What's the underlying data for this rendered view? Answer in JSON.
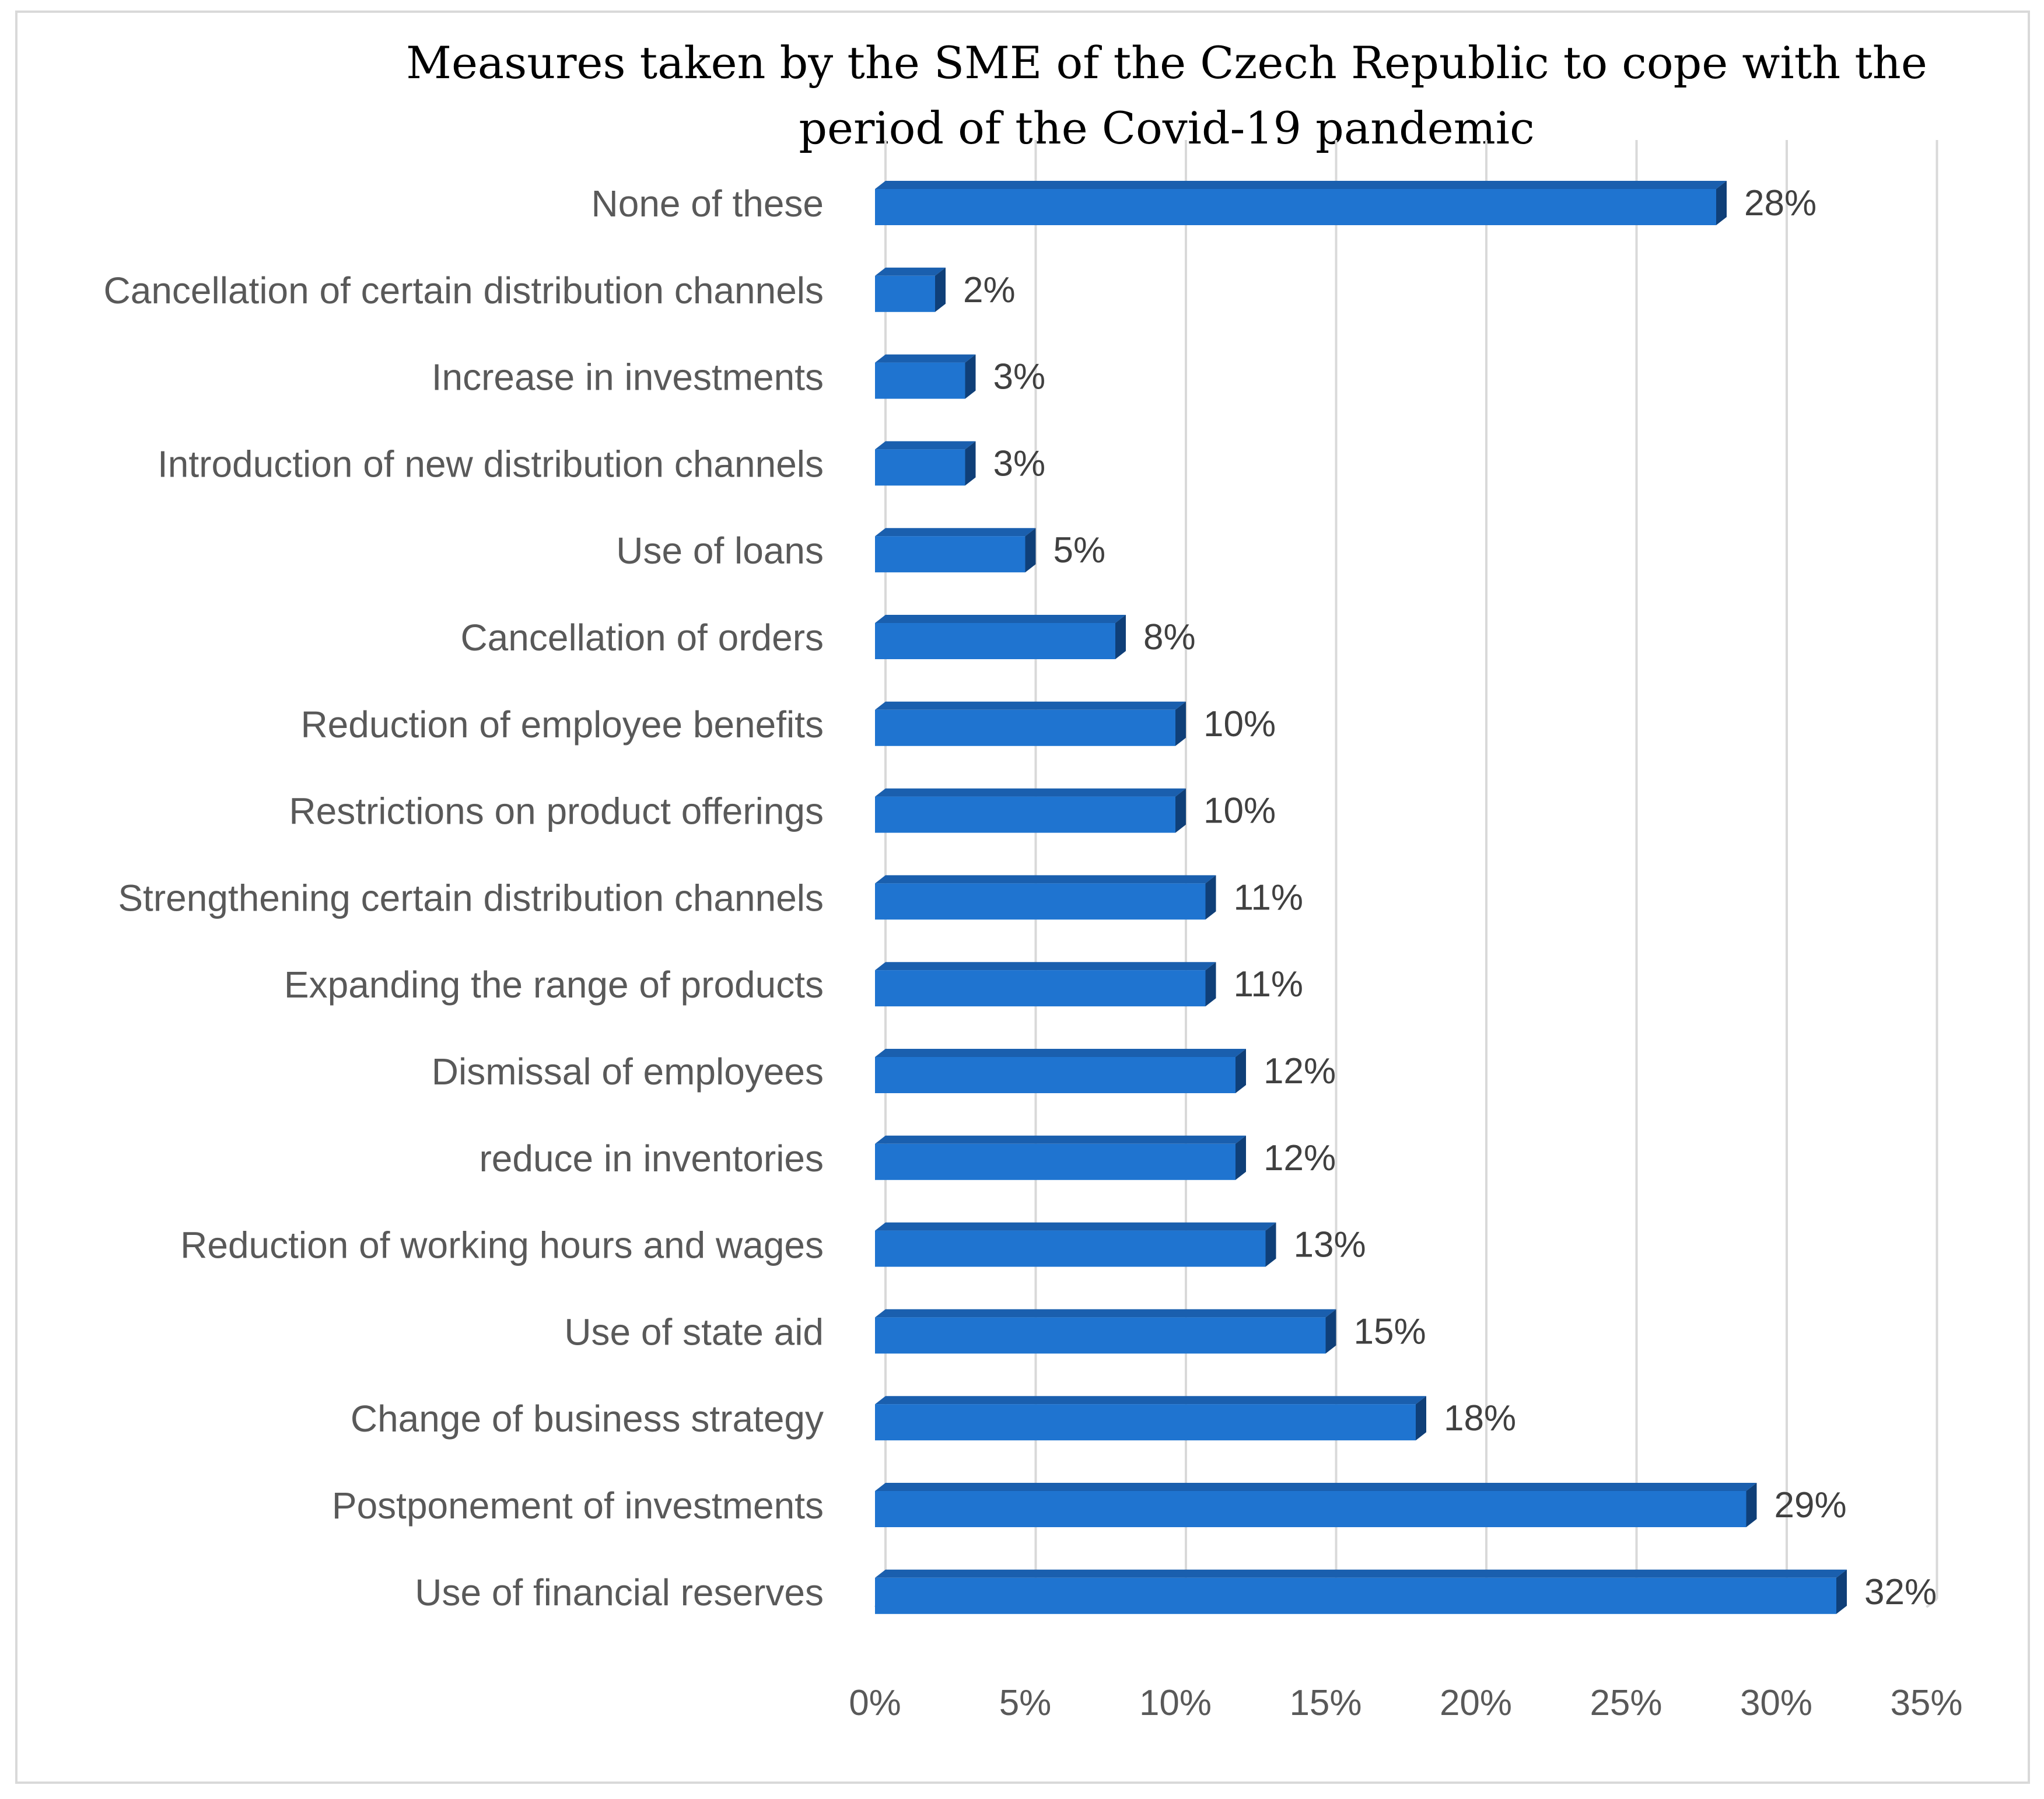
{
  "chart_data": {
    "type": "bar",
    "orientation": "horizontal",
    "title": "Measures taken by the SME of the Czech Republic to cope with the period of the Covid-19 pandemic",
    "categories": [
      "None of these",
      "Cancellation of certain distribution channels",
      "Increase in investments",
      "Introduction of new distribution channels",
      "Use of loans",
      "Cancellation of orders",
      "Reduction of employee benefits",
      "Restrictions on product offerings",
      "Strengthening certain distribution channels",
      "Expanding the range of products",
      "Dismissal of employees",
      "reduce in inventories",
      "Reduction of working hours and wages",
      "Use of state aid",
      "Change of business strategy",
      "Postponement of investments",
      "Use of financial reserves"
    ],
    "values": [
      28,
      2,
      3,
      3,
      5,
      8,
      10,
      10,
      11,
      11,
      12,
      12,
      13,
      15,
      18,
      29,
      32
    ],
    "data_labels": [
      "28%",
      "2%",
      "3%",
      "3%",
      "5%",
      "8%",
      "10%",
      "10%",
      "11%",
      "11%",
      "12%",
      "12%",
      "13%",
      "15%",
      "18%",
      "29%",
      "32%"
    ],
    "xlim": [
      0,
      35
    ],
    "x_ticks": [
      0,
      5,
      10,
      15,
      20,
      25,
      30,
      35
    ],
    "x_tick_labels": [
      "0%",
      "5%",
      "10%",
      "15%",
      "20%",
      "25%",
      "30%",
      "35%"
    ],
    "xlabel": "",
    "ylabel": "",
    "grid": true,
    "legend": "none",
    "colors": {
      "bar_front": "#1f74d0",
      "bar_top": "#1a5fae",
      "bar_side": "#0f3f78",
      "grid": "#d9d9d9",
      "floor": "#d9d9d9"
    }
  }
}
